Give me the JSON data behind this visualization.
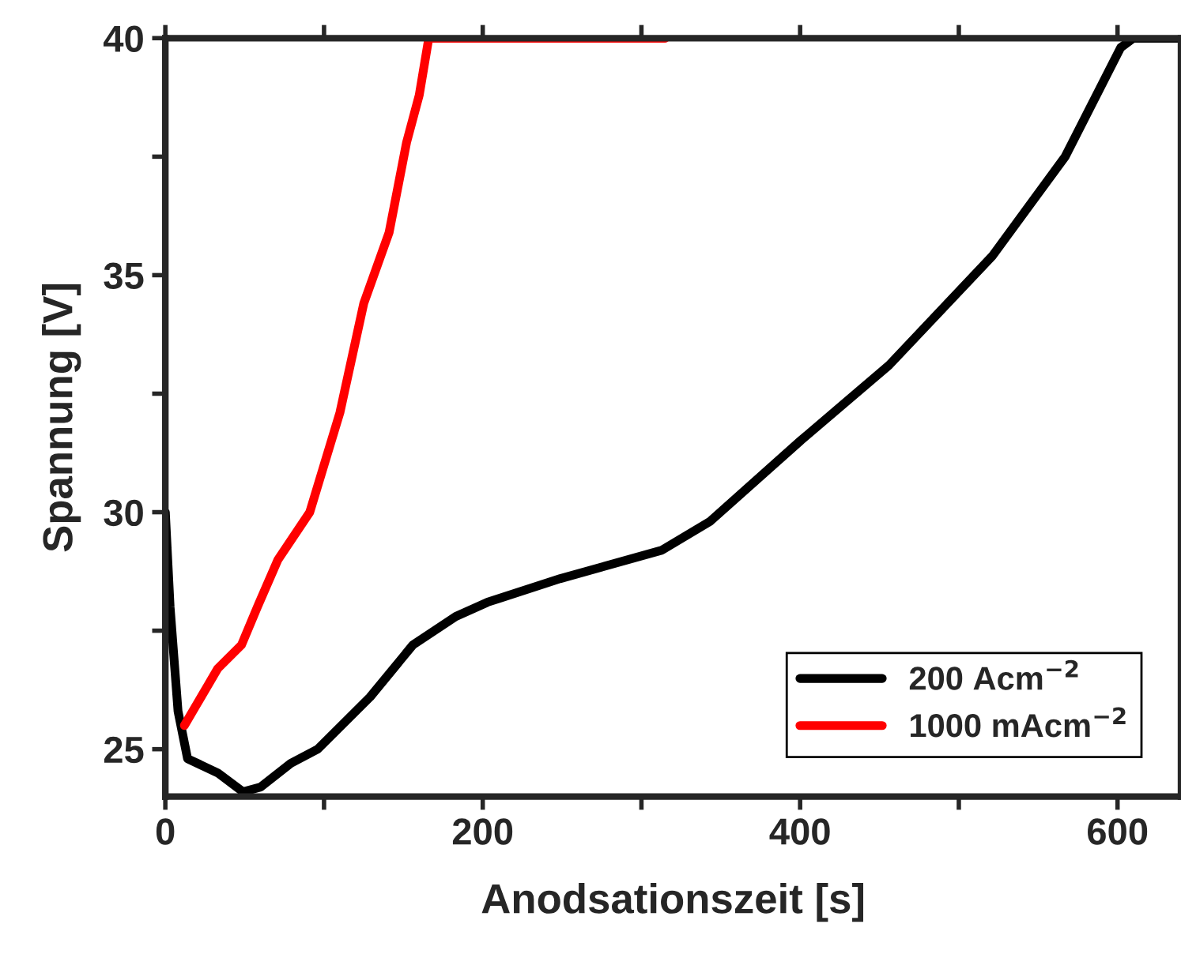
{
  "chart_data": {
    "type": "line",
    "xlabel": "Anodsationszeit [s]",
    "ylabel": "Spannung [V]",
    "xlim": [
      0,
      640
    ],
    "ylim": [
      24,
      40
    ],
    "xticks": [
      0,
      {
        "value": 100,
        "label": null
      },
      200,
      {
        "value": 300,
        "label": null
      },
      400,
      {
        "value": 500,
        "label": null
      },
      600
    ],
    "yticks": [
      25,
      {
        "value": 27.5,
        "label": null
      },
      30,
      {
        "value": 32.5,
        "label": null
      },
      35,
      {
        "value": 37.5,
        "label": null
      },
      40
    ],
    "grid": false,
    "legend": "bottom right",
    "marker": "none",
    "line_style": "solid",
    "series": [
      {
        "name": "200 Acm$^{−2}$",
        "color": "#000000",
        "x": [
          0,
          3,
          8,
          14,
          33,
          49,
          60,
          79,
          96,
          129,
          156,
          183,
          203,
          249,
          313,
          343,
          400,
          456,
          521,
          567,
          602,
          610,
          640
        ],
        "values": [
          30.0,
          28.0,
          25.8,
          24.8,
          24.5,
          24.1,
          24.2,
          24.7,
          25.0,
          26.1,
          27.2,
          27.8,
          28.1,
          28.6,
          29.2,
          29.8,
          31.5,
          33.1,
          35.4,
          37.5,
          39.8,
          40.0,
          40.0
        ]
      },
      {
        "name": "1000 mAcm$^{−2}$",
        "color": "#ff0000",
        "x": [
          12,
          33,
          48,
          58,
          71,
          91,
          110,
          125,
          141,
          152,
          160,
          166,
          315
        ],
        "values": [
          25.5,
          26.7,
          27.2,
          28.0,
          29.0,
          30.0,
          32.1,
          34.4,
          35.9,
          37.8,
          38.8,
          40.0,
          40.0
        ]
      }
    ]
  }
}
